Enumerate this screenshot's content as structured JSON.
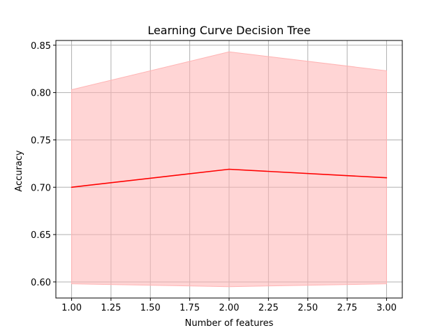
{
  "chart_data": {
    "type": "line",
    "title": "Learning Curve Decision Tree",
    "xlabel": "Number of features",
    "ylabel": "Accuracy",
    "xlim": [
      0.9,
      3.1
    ],
    "ylim": [
      0.583,
      0.855
    ],
    "x_ticks": [
      1.0,
      1.25,
      1.5,
      1.75,
      2.0,
      2.25,
      2.5,
      2.75,
      3.0
    ],
    "x_tick_labels": [
      "1.00",
      "1.25",
      "1.50",
      "1.75",
      "2.00",
      "2.25",
      "2.50",
      "2.75",
      "3.00"
    ],
    "y_ticks": [
      0.6,
      0.65,
      0.7,
      0.75,
      0.8,
      0.85
    ],
    "y_tick_labels": [
      "0.60",
      "0.65",
      "0.70",
      "0.75",
      "0.80",
      "0.85"
    ],
    "grid": true,
    "series": [
      {
        "x": [
          1,
          2,
          3
        ],
        "values": [
          0.7,
          0.719,
          0.71
        ],
        "upper": [
          0.803,
          0.843,
          0.823
        ],
        "lower": [
          0.598,
          0.595,
          0.598
        ],
        "color": "#ff0000",
        "band_color": "#ffb3b3"
      }
    ]
  }
}
